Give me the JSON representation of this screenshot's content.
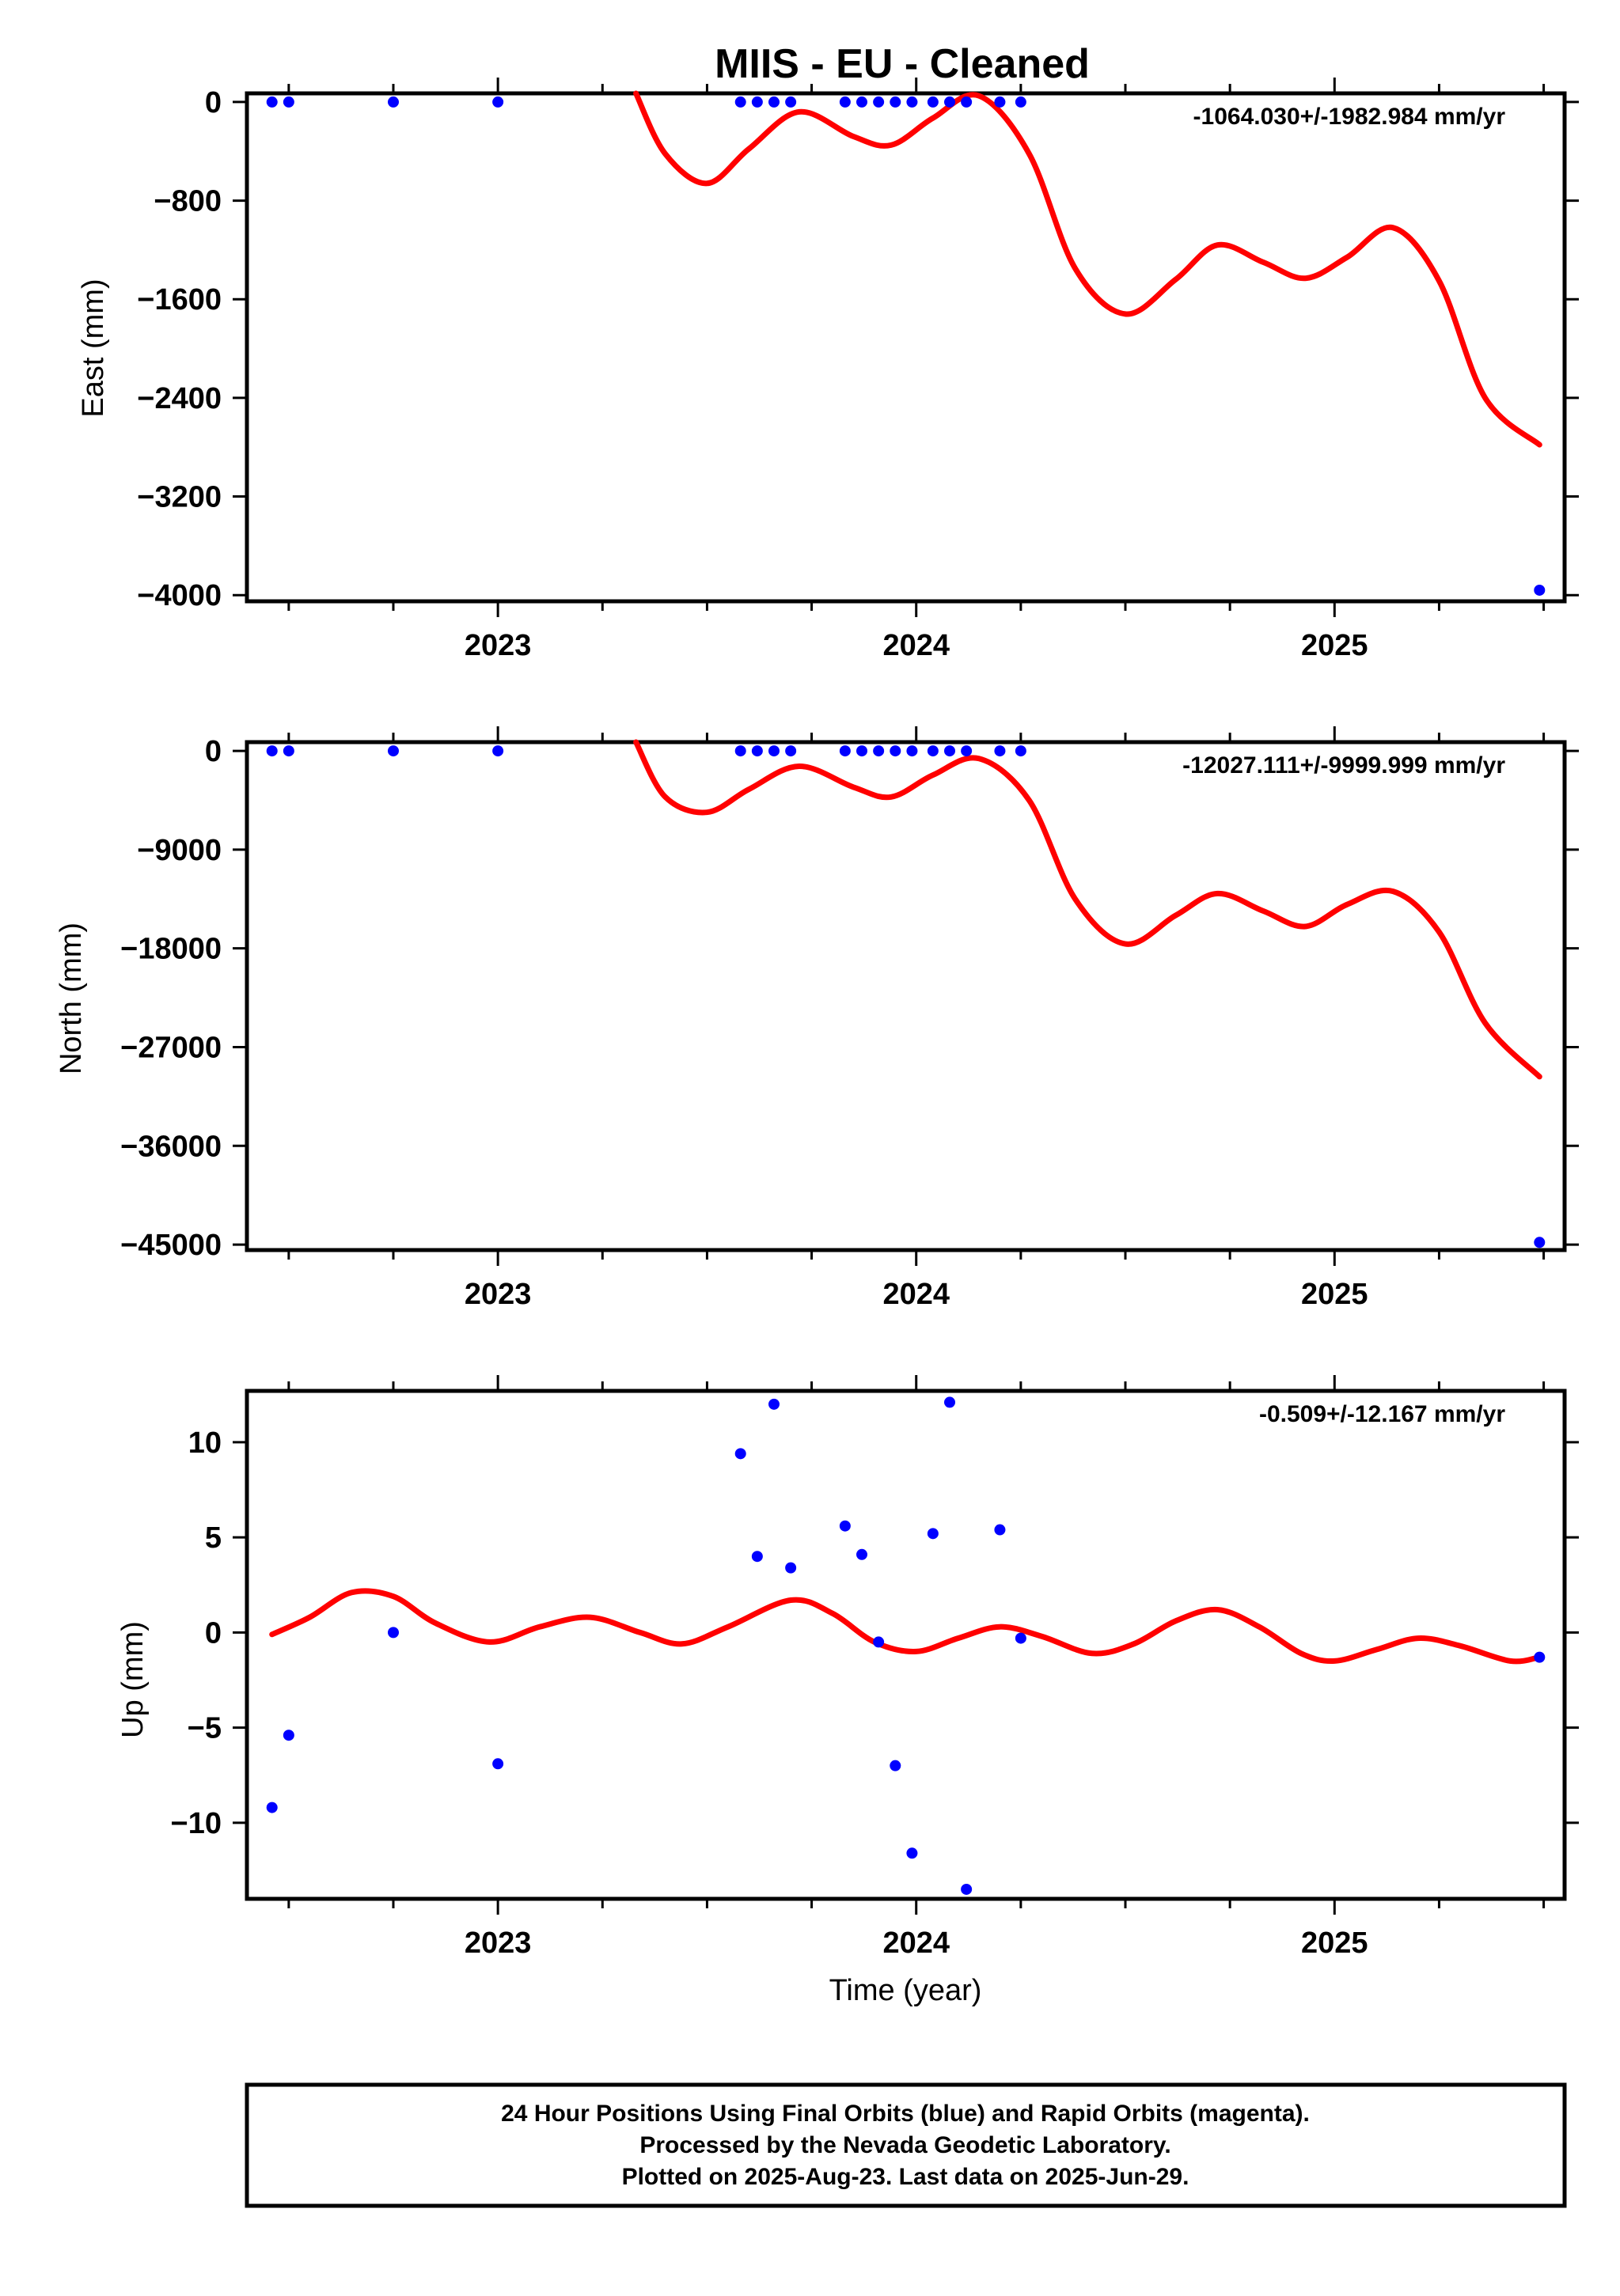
{
  "title": "MIIS  - EU - Cleaned",
  "footer": {
    "line1": "24 Hour Positions Using Final Orbits (blue) and Rapid Orbits (magenta).",
    "line2": "Processed by the Nevada Geodetic Laboratory.",
    "line3": "Plotted on 2025-Aug-23. Last data on 2025-Jun-29."
  },
  "colors": {
    "points": "#0000ff",
    "fit": "#ff0000"
  },
  "chart_data": [
    {
      "type": "scatter",
      "ylabel": "East (mm)",
      "xlabel": "",
      "rate_text": "-1064.030+/-1982.984 mm/yr",
      "xlim": [
        2022.4,
        2025.55
      ],
      "ylim": [
        -4050,
        70
      ],
      "yticks": [
        0,
        -800,
        -1600,
        -2400,
        -3200,
        -4000
      ],
      "ytick_labels": [
        "0",
        "−800",
        "−1600",
        "−2400",
        "−3200",
        "−4000"
      ],
      "xticks": [
        2023,
        2024,
        2025
      ],
      "xtick_labels": [
        "2023",
        "2024",
        "2025"
      ],
      "points": {
        "x": [
          2022.46,
          2022.5,
          2022.75,
          2023.0,
          2023.58,
          2023.62,
          2023.66,
          2023.7,
          2023.83,
          2023.87,
          2023.91,
          2023.95,
          2023.99,
          2024.04,
          2024.08,
          2024.12,
          2024.2,
          2024.25,
          2025.49
        ],
        "y": [
          0,
          0,
          0,
          0,
          0,
          0,
          0,
          0,
          0,
          0,
          0,
          0,
          0,
          0,
          0,
          0,
          0,
          0,
          -3960
        ]
      },
      "fit": {
        "x": [
          2023.33,
          2023.4,
          2023.5,
          2023.6,
          2023.72,
          2023.85,
          2023.94,
          2024.04,
          2024.15,
          2024.27,
          2024.38,
          2024.5,
          2024.62,
          2024.72,
          2024.83,
          2024.93,
          2025.03,
          2025.14,
          2025.25,
          2025.36,
          2025.49
        ],
        "y": [
          70,
          -420,
          -660,
          -380,
          -80,
          -280,
          -350,
          -130,
          50,
          -420,
          -1350,
          -1720,
          -1440,
          -1160,
          -1300,
          -1430,
          -1260,
          -1020,
          -1450,
          -2400,
          -2780
        ]
      }
    },
    {
      "type": "scatter",
      "ylabel": "North (mm)",
      "xlabel": "",
      "rate_text": "-12027.111+/-9999.999 mm/yr",
      "xlim": [
        2022.4,
        2025.55
      ],
      "ylim": [
        -45500,
        800
      ],
      "yticks": [
        0,
        -9000,
        -18000,
        -27000,
        -36000,
        -45000
      ],
      "ytick_labels": [
        "0",
        "−9000",
        "−18000",
        "−27000",
        "−36000",
        "−45000"
      ],
      "xticks": [
        2023,
        2024,
        2025
      ],
      "xtick_labels": [
        "2023",
        "2024",
        "2025"
      ],
      "points": {
        "x": [
          2022.46,
          2022.5,
          2022.75,
          2023.0,
          2023.58,
          2023.62,
          2023.66,
          2023.7,
          2023.83,
          2023.87,
          2023.91,
          2023.95,
          2023.99,
          2024.04,
          2024.08,
          2024.12,
          2024.2,
          2024.25,
          2025.49
        ],
        "y": [
          0,
          0,
          0,
          0,
          0,
          0,
          0,
          0,
          0,
          0,
          0,
          0,
          0,
          0,
          0,
          0,
          0,
          0,
          -44800
        ]
      },
      "fit": {
        "x": [
          2023.33,
          2023.4,
          2023.5,
          2023.6,
          2023.72,
          2023.85,
          2023.94,
          2024.04,
          2024.15,
          2024.27,
          2024.38,
          2024.5,
          2024.62,
          2024.72,
          2024.83,
          2024.93,
          2025.03,
          2025.14,
          2025.25,
          2025.36,
          2025.49
        ],
        "y": [
          800,
          -4200,
          -5600,
          -3500,
          -1400,
          -3300,
          -4200,
          -2200,
          -700,
          -4500,
          -13500,
          -17600,
          -15000,
          -13000,
          -14600,
          -16000,
          -14000,
          -12800,
          -16500,
          -24800,
          -29700
        ]
      }
    },
    {
      "type": "scatter",
      "ylabel": "Up (mm)",
      "xlabel": "Time (year)",
      "rate_text": "-0.509+/-12.167 mm/yr",
      "xlim": [
        2022.4,
        2025.55
      ],
      "ylim": [
        -14,
        12.7
      ],
      "yticks": [
        10,
        5,
        0,
        -5,
        -10
      ],
      "ytick_labels": [
        "10",
        "5",
        "0",
        "−5",
        "−10"
      ],
      "xticks": [
        2023,
        2024,
        2025
      ],
      "xtick_labels": [
        "2023",
        "2024",
        "2025"
      ],
      "points": {
        "x": [
          2022.46,
          2022.5,
          2022.75,
          2023.0,
          2023.58,
          2023.62,
          2023.66,
          2023.7,
          2023.83,
          2023.87,
          2023.91,
          2023.95,
          2023.99,
          2024.04,
          2024.08,
          2024.12,
          2024.2,
          2024.25,
          2025.49
        ],
        "y": [
          -9.2,
          -5.4,
          0.0,
          -6.9,
          9.4,
          4.0,
          12.0,
          3.4,
          5.6,
          4.1,
          -0.5,
          -7.0,
          -11.6,
          5.2,
          12.1,
          -13.5,
          5.4,
          -0.3,
          -1.3
        ]
      },
      "fit": {
        "x": [
          2022.46,
          2022.55,
          2022.65,
          2022.75,
          2022.85,
          2022.98,
          2023.1,
          2023.22,
          2023.34,
          2023.44,
          2023.55,
          2023.7,
          2023.8,
          2023.9,
          2024.0,
          2024.1,
          2024.2,
          2024.3,
          2024.42,
          2024.52,
          2024.62,
          2024.72,
          2024.82,
          2024.92,
          2025.0,
          2025.1,
          2025.2,
          2025.3,
          2025.42,
          2025.49
        ],
        "y": [
          -0.1,
          0.8,
          2.1,
          1.9,
          0.5,
          -0.5,
          0.3,
          0.8,
          0.0,
          -0.6,
          0.3,
          1.7,
          1.0,
          -0.5,
          -1.0,
          -0.3,
          0.3,
          -0.2,
          -1.1,
          -0.6,
          0.6,
          1.2,
          0.3,
          -1.1,
          -1.5,
          -0.9,
          -0.3,
          -0.7,
          -1.5,
          -1.3
        ]
      }
    }
  ]
}
